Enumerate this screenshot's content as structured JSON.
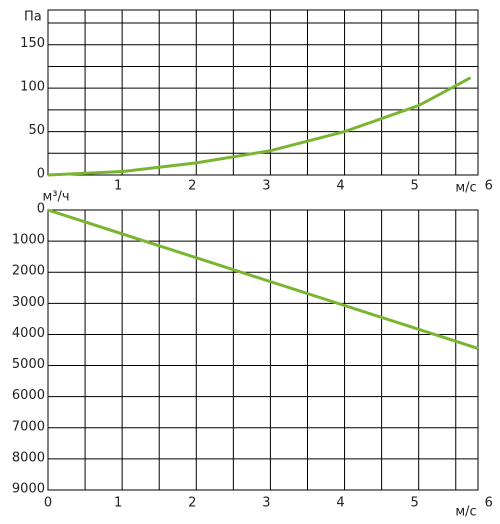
{
  "chart_data": [
    {
      "type": "line",
      "y_label": "Па",
      "x_label": "м/с",
      "x": [
        0,
        1,
        2,
        3,
        4,
        5,
        5.7
      ],
      "series": [
        {
          "color": "#7ab532",
          "values": [
            0,
            4,
            14,
            28,
            50,
            80,
            112
          ]
        }
      ],
      "xlim": [
        0,
        5.8
      ],
      "xticks": [
        1,
        2,
        3,
        4,
        5,
        6
      ],
      "x_minor_ticks": [
        0.5,
        1.5,
        2.5,
        3.5,
        4.5,
        5.5
      ],
      "ylim": [
        0,
        190
      ],
      "yticks": [
        0,
        50,
        100,
        150
      ],
      "y_minor_ticks": [
        25,
        75,
        125,
        175
      ],
      "grid": true,
      "y_inverted": false
    },
    {
      "type": "line",
      "y_label": "м³/ч",
      "x_label": "м/с",
      "x": [
        0,
        5.8
      ],
      "series": [
        {
          "color": "#7ab532",
          "values": [
            0,
            4450
          ]
        }
      ],
      "xlim": [
        0,
        5.8
      ],
      "xticks": [
        0,
        1,
        2,
        3,
        4,
        5,
        6
      ],
      "x_minor_ticks": [
        0.5,
        1.5,
        2.5,
        3.5,
        4.5,
        5.5
      ],
      "ylim": [
        0,
        9000
      ],
      "yticks": [
        0,
        1000,
        2000,
        3000,
        4000,
        5000,
        6000,
        7000,
        8000,
        9000
      ],
      "y_minor_ticks": [],
      "grid": true,
      "y_inverted": true
    }
  ]
}
